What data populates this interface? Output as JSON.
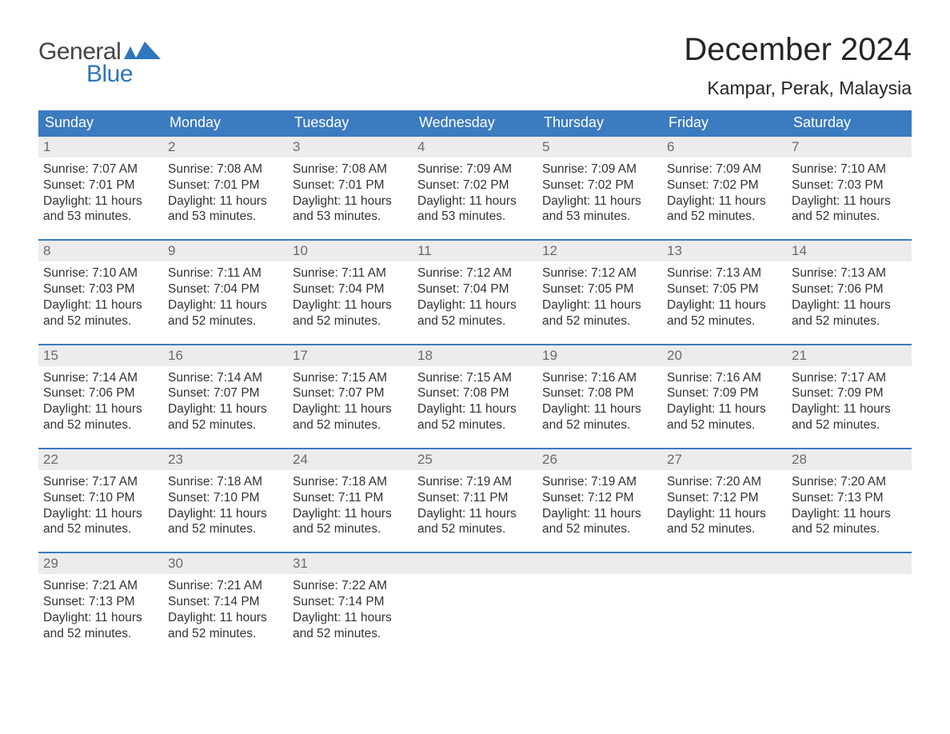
{
  "logo": {
    "top": "General",
    "bottom": "Blue"
  },
  "title": "December 2024",
  "location": "Kampar, Perak, Malaysia",
  "colors": {
    "brand_blue": "#3b7bc0",
    "logo_blue": "#2f76bb",
    "daynum_bg": "#ececec",
    "text": "#333333",
    "daynum_text": "#6a6a6a",
    "title_text": "#262626",
    "bg": "#ffffff"
  },
  "fonts": {
    "title_size": 40,
    "location_size": 23,
    "dow_size": 18,
    "daynum_size": 17,
    "body_size": 15.5
  },
  "dow": [
    "Sunday",
    "Monday",
    "Tuesday",
    "Wednesday",
    "Thursday",
    "Friday",
    "Saturday"
  ],
  "weeks": [
    [
      {
        "n": "1",
        "sunrise": "7:07 AM",
        "sunset": "7:01 PM",
        "dl1": "11 hours",
        "dl2": "and 53 minutes."
      },
      {
        "n": "2",
        "sunrise": "7:08 AM",
        "sunset": "7:01 PM",
        "dl1": "11 hours",
        "dl2": "and 53 minutes."
      },
      {
        "n": "3",
        "sunrise": "7:08 AM",
        "sunset": "7:01 PM",
        "dl1": "11 hours",
        "dl2": "and 53 minutes."
      },
      {
        "n": "4",
        "sunrise": "7:09 AM",
        "sunset": "7:02 PM",
        "dl1": "11 hours",
        "dl2": "and 53 minutes."
      },
      {
        "n": "5",
        "sunrise": "7:09 AM",
        "sunset": "7:02 PM",
        "dl1": "11 hours",
        "dl2": "and 53 minutes."
      },
      {
        "n": "6",
        "sunrise": "7:09 AM",
        "sunset": "7:02 PM",
        "dl1": "11 hours",
        "dl2": "and 52 minutes."
      },
      {
        "n": "7",
        "sunrise": "7:10 AM",
        "sunset": "7:03 PM",
        "dl1": "11 hours",
        "dl2": "and 52 minutes."
      }
    ],
    [
      {
        "n": "8",
        "sunrise": "7:10 AM",
        "sunset": "7:03 PM",
        "dl1": "11 hours",
        "dl2": "and 52 minutes."
      },
      {
        "n": "9",
        "sunrise": "7:11 AM",
        "sunset": "7:04 PM",
        "dl1": "11 hours",
        "dl2": "and 52 minutes."
      },
      {
        "n": "10",
        "sunrise": "7:11 AM",
        "sunset": "7:04 PM",
        "dl1": "11 hours",
        "dl2": "and 52 minutes."
      },
      {
        "n": "11",
        "sunrise": "7:12 AM",
        "sunset": "7:04 PM",
        "dl1": "11 hours",
        "dl2": "and 52 minutes."
      },
      {
        "n": "12",
        "sunrise": "7:12 AM",
        "sunset": "7:05 PM",
        "dl1": "11 hours",
        "dl2": "and 52 minutes."
      },
      {
        "n": "13",
        "sunrise": "7:13 AM",
        "sunset": "7:05 PM",
        "dl1": "11 hours",
        "dl2": "and 52 minutes."
      },
      {
        "n": "14",
        "sunrise": "7:13 AM",
        "sunset": "7:06 PM",
        "dl1": "11 hours",
        "dl2": "and 52 minutes."
      }
    ],
    [
      {
        "n": "15",
        "sunrise": "7:14 AM",
        "sunset": "7:06 PM",
        "dl1": "11 hours",
        "dl2": "and 52 minutes."
      },
      {
        "n": "16",
        "sunrise": "7:14 AM",
        "sunset": "7:07 PM",
        "dl1": "11 hours",
        "dl2": "and 52 minutes."
      },
      {
        "n": "17",
        "sunrise": "7:15 AM",
        "sunset": "7:07 PM",
        "dl1": "11 hours",
        "dl2": "and 52 minutes."
      },
      {
        "n": "18",
        "sunrise": "7:15 AM",
        "sunset": "7:08 PM",
        "dl1": "11 hours",
        "dl2": "and 52 minutes."
      },
      {
        "n": "19",
        "sunrise": "7:16 AM",
        "sunset": "7:08 PM",
        "dl1": "11 hours",
        "dl2": "and 52 minutes."
      },
      {
        "n": "20",
        "sunrise": "7:16 AM",
        "sunset": "7:09 PM",
        "dl1": "11 hours",
        "dl2": "and 52 minutes."
      },
      {
        "n": "21",
        "sunrise": "7:17 AM",
        "sunset": "7:09 PM",
        "dl1": "11 hours",
        "dl2": "and 52 minutes."
      }
    ],
    [
      {
        "n": "22",
        "sunrise": "7:17 AM",
        "sunset": "7:10 PM",
        "dl1": "11 hours",
        "dl2": "and 52 minutes."
      },
      {
        "n": "23",
        "sunrise": "7:18 AM",
        "sunset": "7:10 PM",
        "dl1": "11 hours",
        "dl2": "and 52 minutes."
      },
      {
        "n": "24",
        "sunrise": "7:18 AM",
        "sunset": "7:11 PM",
        "dl1": "11 hours",
        "dl2": "and 52 minutes."
      },
      {
        "n": "25",
        "sunrise": "7:19 AM",
        "sunset": "7:11 PM",
        "dl1": "11 hours",
        "dl2": "and 52 minutes."
      },
      {
        "n": "26",
        "sunrise": "7:19 AM",
        "sunset": "7:12 PM",
        "dl1": "11 hours",
        "dl2": "and 52 minutes."
      },
      {
        "n": "27",
        "sunrise": "7:20 AM",
        "sunset": "7:12 PM",
        "dl1": "11 hours",
        "dl2": "and 52 minutes."
      },
      {
        "n": "28",
        "sunrise": "7:20 AM",
        "sunset": "7:13 PM",
        "dl1": "11 hours",
        "dl2": "and 52 minutes."
      }
    ],
    [
      {
        "n": "29",
        "sunrise": "7:21 AM",
        "sunset": "7:13 PM",
        "dl1": "11 hours",
        "dl2": "and 52 minutes."
      },
      {
        "n": "30",
        "sunrise": "7:21 AM",
        "sunset": "7:14 PM",
        "dl1": "11 hours",
        "dl2": "and 52 minutes."
      },
      {
        "n": "31",
        "sunrise": "7:22 AM",
        "sunset": "7:14 PM",
        "dl1": "11 hours",
        "dl2": "and 52 minutes."
      },
      null,
      null,
      null,
      null
    ]
  ],
  "labels": {
    "sunrise": "Sunrise: ",
    "sunset": "Sunset: ",
    "daylight": "Daylight: "
  }
}
